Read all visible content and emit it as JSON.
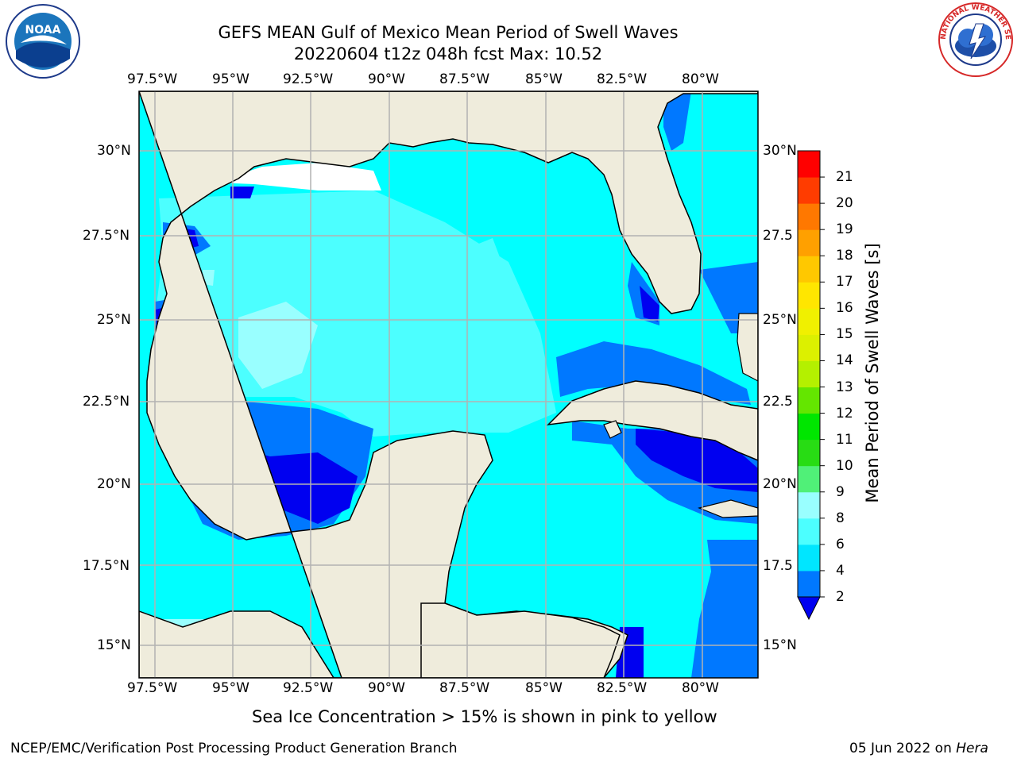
{
  "header": {
    "title_line1": "GEFS MEAN Gulf of Mexico Mean Period of Swell Waves",
    "title_line2": "20220604 t12z 048h fcst   Max: 10.52"
  },
  "logos": {
    "left": {
      "icon": "noaa-logo",
      "text": "NOAA",
      "ring_text": "NATIONAL OCEANIC AND ATMOSPHERIC ADMINISTRATION · U.S. DEPARTMENT OF COMMERCE"
    },
    "right": {
      "icon": "nws-logo",
      "ring_text": "NATIONAL WEATHER SERVICE"
    }
  },
  "map": {
    "lon_labels": [
      "97.5°W",
      "95°W",
      "92.5°W",
      "90°W",
      "87.5°W",
      "85°W",
      "82.5°W",
      "80°W"
    ],
    "lat_labels_left": [
      "30°N",
      "27.5°N",
      "25°N",
      "22.5°N",
      "20°N",
      "17.5°N",
      "15°N"
    ],
    "lat_labels_right": [
      "30°N",
      "27.5",
      "25°N",
      "22.5",
      "20°N",
      "17.5",
      "15°N"
    ],
    "colors": {
      "land": "#efecdc",
      "grid": "#b2b2b2",
      "coast": "#000000"
    }
  },
  "colorbar": {
    "label": "Mean Period of Swell Waves [s]",
    "ticks": [
      "2",
      "4",
      "6",
      "8",
      "9",
      "10",
      "11",
      "12",
      "13",
      "14",
      "15",
      "16",
      "17",
      "18",
      "19",
      "20",
      "21"
    ],
    "colors": [
      "#0000f0",
      "#0078ff",
      "#00e6ff",
      "#4cffff",
      "#99ffff",
      "#50f078",
      "#28dc14",
      "#00e600",
      "#64e600",
      "#b4f000",
      "#dcf000",
      "#f0f000",
      "#ffe600",
      "#ffc800",
      "#ffa000",
      "#ff7800",
      "#ff3c00",
      "#ff0000"
    ]
  },
  "note": "Sea Ice Concentration > 15% is shown in pink to yellow",
  "footer": {
    "left": "NCEP/EMC/Verification Post Processing Product Generation Branch",
    "date": "05 Jun 2022 on",
    "machine": "Hera"
  }
}
